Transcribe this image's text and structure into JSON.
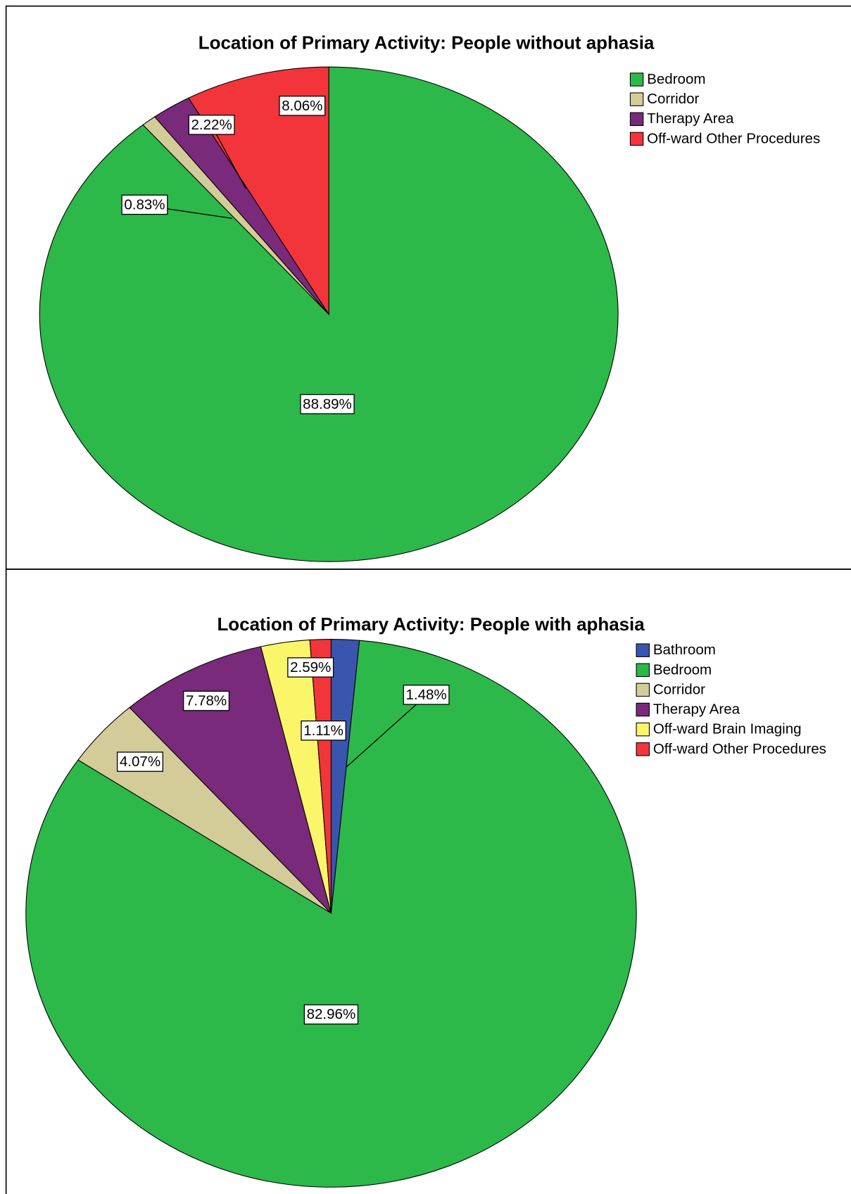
{
  "chart_data": [
    {
      "type": "pie",
      "title": "Location of Primary Activity: People without aphasia",
      "categories": [
        "Bedroom",
        "Corridor",
        "Therapy Area",
        "Off-ward Other Procedures"
      ],
      "values": [
        88.89,
        0.83,
        2.22,
        8.06
      ],
      "value_labels": [
        "88.89%",
        "0.83%",
        "2.22%",
        "8.06%"
      ],
      "colors": [
        "#2db84a",
        "#d4cc98",
        "#7a2a7a",
        "#f2353b"
      ]
    },
    {
      "type": "pie",
      "title": "Location of Primary Activity: People with aphasia",
      "categories": [
        "Bathroom",
        "Bedroom",
        "Corridor",
        "Therapy Area",
        "Off-ward Brain Imaging",
        "Off-ward Other Procedures"
      ],
      "values": [
        1.48,
        82.96,
        4.07,
        7.78,
        2.59,
        1.11
      ],
      "value_labels": [
        "1.48%",
        "82.96%",
        "4.07%",
        "7.78%",
        "2.59%",
        "1.11%"
      ],
      "colors": [
        "#3a55ae",
        "#2db84a",
        "#d4cc98",
        "#7a2a7a",
        "#fbf56a",
        "#f2353b"
      ]
    }
  ]
}
